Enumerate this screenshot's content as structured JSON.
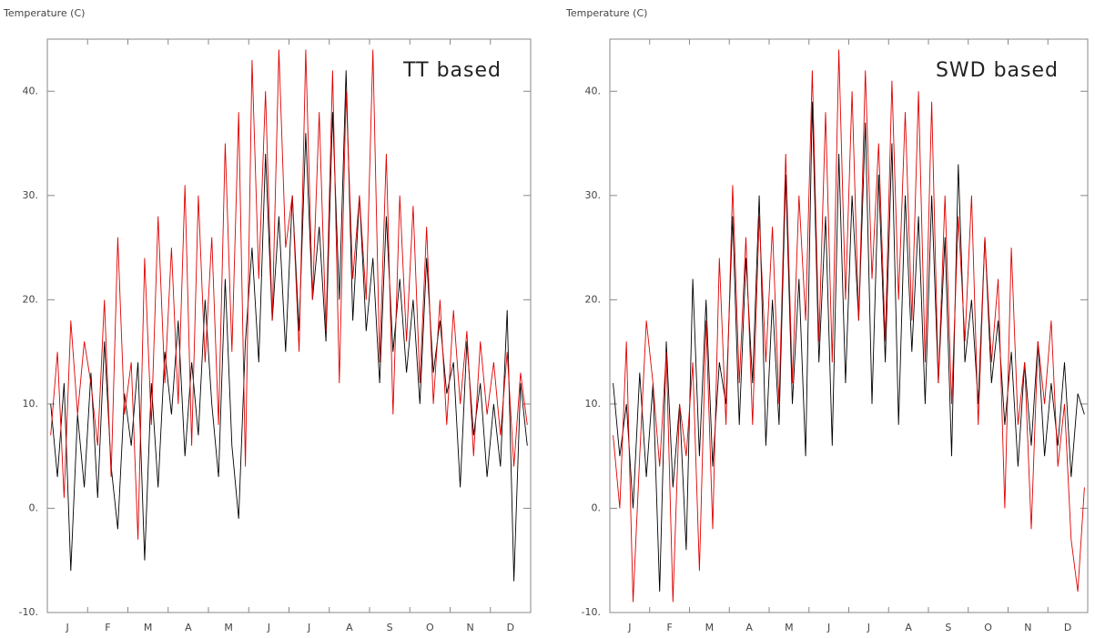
{
  "chart_data": [
    {
      "type": "line",
      "ylabel": "Temperature (C)",
      "annotation": "TT based",
      "x_labels": [
        "J",
        "F",
        "M",
        "A",
        "M",
        "J",
        "J",
        "A",
        "S",
        "O",
        "N",
        "D"
      ],
      "ylim": [
        -10,
        45
      ],
      "yticks": [
        {
          "value": -10,
          "label": "-10."
        },
        {
          "value": 0,
          "label": "0."
        },
        {
          "value": 10,
          "label": "10."
        },
        {
          "value": 20,
          "label": "20."
        },
        {
          "value": 30,
          "label": "30."
        },
        {
          "value": 40,
          "label": "40."
        }
      ],
      "series": [
        {
          "color": "#000000",
          "values": [
            10,
            3,
            12,
            -6,
            9,
            2,
            13,
            1,
            16,
            4,
            -2,
            11,
            6,
            14,
            -5,
            12,
            2,
            15,
            9,
            18,
            5,
            14,
            7,
            20,
            10,
            3,
            22,
            6,
            -1,
            16,
            25,
            14,
            34,
            18,
            28,
            15,
            30,
            17,
            36,
            20,
            27,
            16,
            38,
            20,
            42,
            18,
            30,
            17,
            24,
            12,
            28,
            15,
            22,
            13,
            20,
            10,
            24,
            13,
            18,
            11,
            14,
            2,
            16,
            7,
            12,
            3,
            10,
            4,
            19,
            -7,
            12,
            6
          ]
        },
        {
          "color": "#e00000",
          "values": [
            7,
            15,
            1,
            18,
            9,
            16,
            12,
            6,
            20,
            3,
            26,
            9,
            14,
            -3,
            24,
            8,
            28,
            12,
            25,
            10,
            31,
            6,
            30,
            14,
            26,
            8,
            35,
            15,
            38,
            4,
            43,
            22,
            40,
            18,
            44,
            25,
            30,
            15,
            44,
            20,
            38,
            17,
            42,
            12,
            40,
            22,
            30,
            20,
            44,
            14,
            34,
            9,
            30,
            16,
            29,
            12,
            27,
            10,
            20,
            8,
            19,
            10,
            17,
            5,
            16,
            9,
            14,
            7,
            15,
            4,
            13,
            8
          ]
        }
      ]
    },
    {
      "type": "line",
      "ylabel": "Temperature (C)",
      "annotation": "SWD based",
      "x_labels": [
        "J",
        "F",
        "M",
        "A",
        "M",
        "J",
        "J",
        "A",
        "S",
        "O",
        "N",
        "D"
      ],
      "ylim": [
        -10,
        45
      ],
      "yticks": [
        {
          "value": -10,
          "label": "-10."
        },
        {
          "value": 0,
          "label": "0."
        },
        {
          "value": 10,
          "label": "10."
        },
        {
          "value": 20,
          "label": "20."
        },
        {
          "value": 30,
          "label": "30."
        },
        {
          "value": 40,
          "label": "40."
        }
      ],
      "series": [
        {
          "color": "#000000",
          "values": [
            12,
            5,
            10,
            0,
            13,
            3,
            12,
            -8,
            16,
            2,
            10,
            -4,
            22,
            5,
            20,
            4,
            14,
            10,
            28,
            8,
            24,
            12,
            30,
            6,
            20,
            8,
            32,
            10,
            22,
            5,
            39,
            14,
            28,
            6,
            34,
            12,
            30,
            18,
            37,
            10,
            32,
            14,
            35,
            8,
            30,
            15,
            28,
            10,
            30,
            12,
            26,
            5,
            33,
            14,
            20,
            10,
            26,
            12,
            18,
            8,
            15,
            4,
            14,
            6,
            16,
            5,
            12,
            6,
            14,
            3,
            11,
            9
          ]
        },
        {
          "color": "#e00000",
          "values": [
            7,
            0,
            16,
            -9,
            5,
            18,
            12,
            4,
            15,
            -9,
            10,
            5,
            14,
            -6,
            18,
            -2,
            24,
            8,
            31,
            12,
            26,
            8,
            28,
            14,
            27,
            10,
            34,
            12,
            30,
            18,
            42,
            16,
            38,
            14,
            44,
            20,
            40,
            18,
            42,
            22,
            35,
            16,
            41,
            20,
            38,
            18,
            40,
            14,
            39,
            12,
            30,
            10,
            28,
            16,
            30,
            8,
            26,
            14,
            22,
            0,
            25,
            8,
            14,
            -2,
            16,
            10,
            18,
            4,
            10,
            -3,
            -8,
            2
          ]
        }
      ]
    }
  ]
}
